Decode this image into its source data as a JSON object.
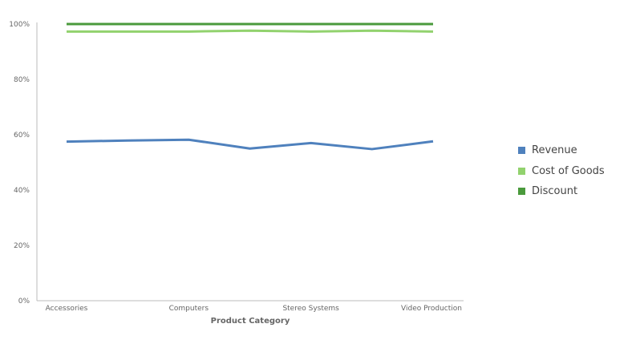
{
  "chart_data": {
    "type": "line",
    "title": "",
    "xlabel": "Product Category",
    "ylabel": "",
    "categories": [
      "Accessories",
      "",
      "Computers",
      "",
      "Stereo Systems",
      "",
      "Video Production"
    ],
    "ytick_labels": [
      "0%",
      "20%",
      "40%",
      "60%",
      "80%",
      "100%"
    ],
    "ylim": [
      0,
      100
    ],
    "grid": false,
    "legend_position": "right",
    "series": [
      {
        "name": "Revenue",
        "color": "#4f81bd",
        "values": [
          57.5,
          57.9,
          58.2,
          55.0,
          57.0,
          54.8,
          57.6
        ]
      },
      {
        "name": "Cost of Goods",
        "color": "#92d26e",
        "values": [
          97.3,
          97.3,
          97.3,
          97.6,
          97.3,
          97.6,
          97.3
        ]
      },
      {
        "name": "Discount",
        "color": "#4a9a3c",
        "values": [
          100,
          100,
          100,
          100,
          100,
          100,
          100
        ]
      }
    ]
  }
}
